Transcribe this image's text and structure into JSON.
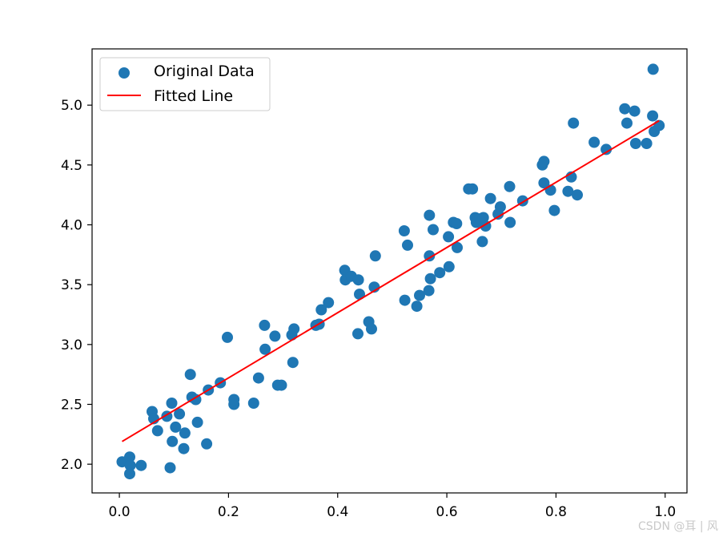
{
  "chart_data": {
    "type": "scatter",
    "title": "",
    "xlabel": "",
    "ylabel": "",
    "xlim": [
      -0.05,
      1.04
    ],
    "ylim": [
      1.76,
      5.47
    ],
    "xticks": [
      0.0,
      0.2,
      0.4,
      0.6,
      0.8,
      1.0
    ],
    "yticks": [
      2.0,
      2.5,
      3.0,
      3.5,
      4.0,
      4.5,
      5.0
    ],
    "xtick_labels": [
      "0.0",
      "0.2",
      "0.4",
      "0.6",
      "0.8",
      "1.0"
    ],
    "ytick_labels": [
      "2.0",
      "2.5",
      "3.0",
      "3.5",
      "4.0",
      "4.5",
      "5.0"
    ],
    "grid": false,
    "legend_position": "top-left",
    "series": [
      {
        "name": "Original Data",
        "kind": "scatter",
        "color": "#1f77b4",
        "points": [
          [
            0.005,
            2.02
          ],
          [
            0.019,
            2.06
          ],
          [
            0.02,
            1.99
          ],
          [
            0.019,
            1.92
          ],
          [
            0.04,
            1.99
          ],
          [
            0.06,
            2.44
          ],
          [
            0.063,
            2.38
          ],
          [
            0.07,
            2.28
          ],
          [
            0.087,
            2.4
          ],
          [
            0.093,
            1.97
          ],
          [
            0.096,
            2.51
          ],
          [
            0.097,
            2.19
          ],
          [
            0.103,
            2.31
          ],
          [
            0.11,
            2.42
          ],
          [
            0.118,
            2.13
          ],
          [
            0.12,
            2.26
          ],
          [
            0.13,
            2.75
          ],
          [
            0.133,
            2.56
          ],
          [
            0.14,
            2.54
          ],
          [
            0.143,
            2.35
          ],
          [
            0.16,
            2.17
          ],
          [
            0.163,
            2.62
          ],
          [
            0.185,
            2.68
          ],
          [
            0.198,
            3.06
          ],
          [
            0.21,
            2.5
          ],
          [
            0.21,
            2.54
          ],
          [
            0.246,
            2.51
          ],
          [
            0.255,
            2.72
          ],
          [
            0.266,
            3.16
          ],
          [
            0.267,
            2.96
          ],
          [
            0.285,
            3.07
          ],
          [
            0.29,
            2.66
          ],
          [
            0.297,
            2.66
          ],
          [
            0.316,
            3.08
          ],
          [
            0.318,
            2.85
          ],
          [
            0.32,
            3.13
          ],
          [
            0.36,
            3.16
          ],
          [
            0.366,
            3.17
          ],
          [
            0.37,
            3.29
          ],
          [
            0.383,
            3.35
          ],
          [
            0.413,
            3.62
          ],
          [
            0.414,
            3.54
          ],
          [
            0.425,
            3.57
          ],
          [
            0.437,
            3.09
          ],
          [
            0.438,
            3.54
          ],
          [
            0.44,
            3.42
          ],
          [
            0.457,
            3.19
          ],
          [
            0.462,
            3.13
          ],
          [
            0.467,
            3.48
          ],
          [
            0.469,
            3.74
          ],
          [
            0.522,
            3.95
          ],
          [
            0.523,
            3.37
          ],
          [
            0.528,
            3.83
          ],
          [
            0.545,
            3.32
          ],
          [
            0.55,
            3.41
          ],
          [
            0.567,
            3.45
          ],
          [
            0.568,
            4.08
          ],
          [
            0.568,
            3.74
          ],
          [
            0.57,
            3.55
          ],
          [
            0.575,
            3.96
          ],
          [
            0.587,
            3.6
          ],
          [
            0.603,
            3.9
          ],
          [
            0.604,
            3.65
          ],
          [
            0.612,
            4.02
          ],
          [
            0.618,
            4.01
          ],
          [
            0.619,
            3.81
          ],
          [
            0.64,
            4.3
          ],
          [
            0.647,
            4.3
          ],
          [
            0.652,
            4.06
          ],
          [
            0.654,
            4.02
          ],
          [
            0.661,
            4.05
          ],
          [
            0.665,
            3.86
          ],
          [
            0.667,
            4.06
          ],
          [
            0.671,
            3.99
          ],
          [
            0.68,
            4.22
          ],
          [
            0.694,
            4.09
          ],
          [
            0.698,
            4.15
          ],
          [
            0.715,
            4.32
          ],
          [
            0.716,
            4.02
          ],
          [
            0.739,
            4.2
          ],
          [
            0.775,
            4.5
          ],
          [
            0.778,
            4.53
          ],
          [
            0.778,
            4.35
          ],
          [
            0.79,
            4.29
          ],
          [
            0.797,
            4.12
          ],
          [
            0.822,
            4.28
          ],
          [
            0.828,
            4.4
          ],
          [
            0.832,
            4.85
          ],
          [
            0.839,
            4.25
          ],
          [
            0.87,
            4.69
          ],
          [
            0.892,
            4.63
          ],
          [
            0.926,
            4.97
          ],
          [
            0.93,
            4.85
          ],
          [
            0.944,
            4.95
          ],
          [
            0.946,
            4.68
          ],
          [
            0.966,
            4.68
          ],
          [
            0.977,
            4.91
          ],
          [
            0.978,
            5.3
          ],
          [
            0.98,
            4.78
          ],
          [
            0.989,
            4.83
          ]
        ]
      },
      {
        "name": "Fitted Line",
        "kind": "line",
        "color": "#ff0000",
        "points": [
          [
            0.005,
            2.19
          ],
          [
            0.989,
            4.87
          ]
        ]
      }
    ]
  },
  "watermark": "CSDN @耳 | 风"
}
